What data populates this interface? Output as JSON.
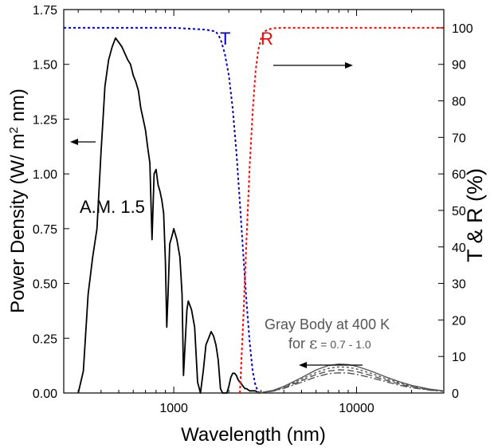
{
  "chart_data": {
    "type": "line",
    "xlabel": "Wavelength (nm)",
    "ylabel_left": "Power Density (W/ m2 nm)",
    "ylabel_right": "T & R (%)",
    "x_scale": "log",
    "xlim": [
      250,
      30000
    ],
    "ylim_left": [
      0,
      1.75
    ],
    "ylim_right": [
      0,
      105
    ],
    "x_ticks": [
      {
        "value": 1000,
        "label": "1000"
      },
      {
        "value": 10000,
        "label": "10000"
      }
    ],
    "y_left_ticks": [
      {
        "value": 0,
        "label": "0.00"
      },
      {
        "value": 0.25,
        "label": "0.25"
      },
      {
        "value": 0.5,
        "label": "0.50"
      },
      {
        "value": 0.75,
        "label": "0.75"
      },
      {
        "value": 1.0,
        "label": "1.00"
      },
      {
        "value": 1.25,
        "label": "1.25"
      },
      {
        "value": 1.5,
        "label": "1.50"
      },
      {
        "value": 1.75,
        "label": "1.75"
      }
    ],
    "y_right_ticks": [
      {
        "value": 0,
        "label": "0"
      },
      {
        "value": 10,
        "label": "10"
      },
      {
        "value": 20,
        "label": "20"
      },
      {
        "value": 30,
        "label": "30"
      },
      {
        "value": 40,
        "label": "40"
      },
      {
        "value": 50,
        "label": "50"
      },
      {
        "value": 60,
        "label": "60"
      },
      {
        "value": 70,
        "label": "70"
      },
      {
        "value": 80,
        "label": "80"
      },
      {
        "value": 90,
        "label": "90"
      },
      {
        "value": 100,
        "label": "100"
      }
    ],
    "grid": false,
    "series": [
      {
        "name": "A.M. 1.5",
        "axis": "left",
        "color": "#000000",
        "style": "solid",
        "x": [
          300,
          320,
          340,
          360,
          380,
          400,
          410,
          420,
          440,
          460,
          480,
          500,
          520,
          540,
          560,
          580,
          600,
          620,
          640,
          660,
          680,
          700,
          720,
          740,
          760,
          780,
          800,
          820,
          840,
          860,
          880,
          900,
          915,
          930,
          950,
          980,
          1000,
          1040,
          1080,
          1110,
          1130,
          1150,
          1180,
          1200,
          1250,
          1300,
          1350,
          1400,
          1450,
          1500,
          1550,
          1600,
          1650,
          1700,
          1750,
          1800,
          1850,
          1900,
          1950,
          2000,
          2050,
          2100,
          2150,
          2200,
          2250,
          2300,
          2350,
          2400,
          2450,
          2500,
          2600,
          2700,
          2800,
          2900,
          3000
        ],
        "y": [
          0.0,
          0.1,
          0.45,
          0.62,
          0.75,
          1.1,
          1.25,
          1.4,
          1.52,
          1.58,
          1.62,
          1.6,
          1.58,
          1.55,
          1.52,
          1.5,
          1.45,
          1.42,
          1.38,
          1.3,
          1.25,
          1.2,
          1.12,
          1.05,
          0.7,
          1.0,
          1.02,
          0.95,
          0.92,
          0.88,
          0.82,
          0.6,
          0.3,
          0.45,
          0.68,
          0.72,
          0.75,
          0.7,
          0.62,
          0.45,
          0.08,
          0.2,
          0.38,
          0.42,
          0.38,
          0.3,
          0.05,
          0.0,
          0.1,
          0.22,
          0.25,
          0.28,
          0.26,
          0.22,
          0.15,
          0.02,
          0.0,
          0.0,
          0.0,
          0.03,
          0.07,
          0.09,
          0.09,
          0.08,
          0.06,
          0.05,
          0.04,
          0.03,
          0.02,
          0.02,
          0.01,
          0.01,
          0.01,
          0.0,
          0.0
        ]
      },
      {
        "name": "T",
        "axis": "right",
        "color": "#0000cc",
        "style": "dotted",
        "x": [
          250,
          500,
          1000,
          1500,
          1700,
          1800,
          1900,
          2000,
          2100,
          2200,
          2300,
          2400,
          2500,
          2600,
          2700,
          2800,
          2900,
          3000
        ],
        "y": [
          100,
          100,
          100,
          99.5,
          99,
          97,
          93,
          87,
          78,
          66,
          52,
          38,
          25,
          14,
          6,
          2,
          0.3,
          0
        ]
      },
      {
        "name": "R",
        "axis": "right",
        "color": "#ff0000",
        "style": "dotted",
        "x": [
          2300,
          2400,
          2500,
          2600,
          2700,
          2800,
          2900,
          3000,
          3100,
          3200,
          3300,
          3500,
          4000,
          5000,
          10000,
          30000
        ],
        "y": [
          0,
          20,
          42,
          62,
          77,
          88,
          94,
          97,
          98.5,
          99.3,
          99.6,
          99.9,
          100,
          100,
          100,
          100
        ]
      },
      {
        "name": "",
        "axis": "left",
        "color": "#555555",
        "style": "solid",
        "x": [
          2800,
          3000,
          3500,
          4000,
          5000,
          6000,
          7000,
          8000,
          9000,
          10000,
          12000,
          14000,
          17000,
          20000,
          25000,
          30000
        ],
        "y": [
          0.0,
          0.002,
          0.012,
          0.03,
          0.07,
          0.105,
          0.125,
          0.132,
          0.13,
          0.122,
          0.1,
          0.078,
          0.052,
          0.035,
          0.018,
          0.01
        ]
      },
      {
        "name": "",
        "axis": "left",
        "color": "#555555",
        "style": "dotted",
        "x": [
          2800,
          3000,
          3500,
          4000,
          5000,
          6000,
          7000,
          8000,
          9000,
          10000,
          12000,
          14000,
          17000,
          20000,
          25000,
          30000
        ],
        "y": [
          0.0,
          0.002,
          0.011,
          0.027,
          0.063,
          0.094,
          0.112,
          0.119,
          0.117,
          0.11,
          0.09,
          0.07,
          0.047,
          0.031,
          0.016,
          0.009
        ]
      },
      {
        "name": "",
        "axis": "left",
        "color": "#555555",
        "style": "dashed",
        "x": [
          2800,
          3000,
          3500,
          4000,
          5000,
          6000,
          7000,
          8000,
          9000,
          10000,
          12000,
          14000,
          17000,
          20000,
          25000,
          30000
        ],
        "y": [
          0.0,
          0.002,
          0.0095,
          0.024,
          0.056,
          0.084,
          0.1,
          0.106,
          0.104,
          0.098,
          0.08,
          0.062,
          0.042,
          0.028,
          0.014,
          0.008
        ]
      },
      {
        "name": "",
        "axis": "left",
        "color": "#555555",
        "style": "dashdot",
        "x": [
          2800,
          3000,
          3500,
          4000,
          5000,
          6000,
          7000,
          8000,
          9000,
          10000,
          12000,
          14000,
          17000,
          20000,
          25000,
          30000
        ],
        "y": [
          0.0,
          0.001,
          0.0085,
          0.021,
          0.049,
          0.073,
          0.088,
          0.092,
          0.091,
          0.085,
          0.07,
          0.055,
          0.036,
          0.024,
          0.013,
          0.007
        ]
      }
    ],
    "annotations": {
      "am15": "A.M. 1.5",
      "t_label": "T",
      "r_label": "R",
      "gray_body_line1": "Gray Body at 400 K",
      "gray_body_line2_prefix": "for ",
      "gray_body_epsilon": "ε",
      "gray_body_range": " = 0.7 - 1.0"
    },
    "colors": {
      "transmission": "#0000cc",
      "reflection": "#ff0000",
      "spectrum": "#000000",
      "gray_body": "#555555"
    }
  }
}
